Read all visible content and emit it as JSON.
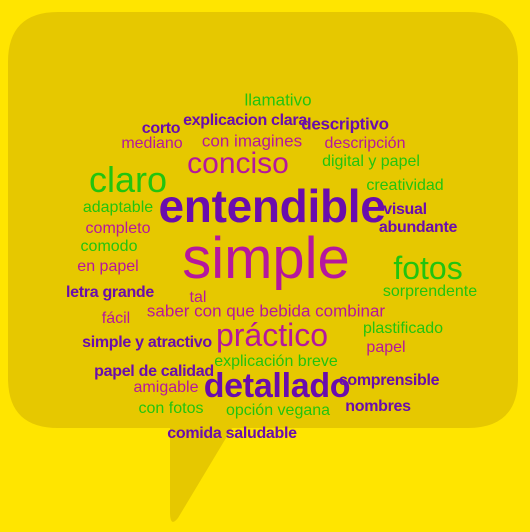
{
  "colors": {
    "background": "#FFE500",
    "bubble": "#E6C800",
    "purple": "#6A0DAD",
    "magenta": "#B5179E",
    "green": "#22C40E"
  },
  "cloud": {
    "words": [
      {
        "id": "llamativo",
        "text": "llamativo",
        "color": "green"
      },
      {
        "id": "explicacion-clara",
        "text": "explicacion clara",
        "color": "purple"
      },
      {
        "id": "corto",
        "text": "corto",
        "color": "purple"
      },
      {
        "id": "descriptivo",
        "text": "descriptivo",
        "color": "purple"
      },
      {
        "id": "mediano",
        "text": "mediano",
        "color": "magenta"
      },
      {
        "id": "con-imagines",
        "text": "con imagines",
        "color": "magenta"
      },
      {
        "id": "descripcion",
        "text": "descripción",
        "color": "magenta"
      },
      {
        "id": "conciso",
        "text": "conciso",
        "color": "magenta"
      },
      {
        "id": "digital-y-papel",
        "text": "digital y papel",
        "color": "green"
      },
      {
        "id": "claro",
        "text": "claro",
        "color": "green"
      },
      {
        "id": "creatividad",
        "text": "creatividad",
        "color": "green"
      },
      {
        "id": "entendible",
        "text": "entendible",
        "color": "purple"
      },
      {
        "id": "adaptable",
        "text": "adaptable",
        "color": "green"
      },
      {
        "id": "visual",
        "text": "visual",
        "color": "purple"
      },
      {
        "id": "completo",
        "text": "completo",
        "color": "magenta"
      },
      {
        "id": "abundante",
        "text": "abundante",
        "color": "purple"
      },
      {
        "id": "comodo",
        "text": "comodo",
        "color": "green"
      },
      {
        "id": "simple",
        "text": "simple",
        "color": "magenta"
      },
      {
        "id": "en-papel",
        "text": "en papel",
        "color": "magenta"
      },
      {
        "id": "fotos",
        "text": "fotos",
        "color": "green"
      },
      {
        "id": "letra-grande",
        "text": "letra grande",
        "color": "purple"
      },
      {
        "id": "sorprendente",
        "text": "sorprendente",
        "color": "green"
      },
      {
        "id": "tal",
        "text": "tal",
        "color": "magenta"
      },
      {
        "id": "saber-con-que-bebida-combinar",
        "text": "saber con que bebida combinar",
        "color": "magenta"
      },
      {
        "id": "facil",
        "text": "fácil",
        "color": "magenta"
      },
      {
        "id": "practico",
        "text": "práctico",
        "color": "magenta"
      },
      {
        "id": "plastificado",
        "text": "plastificado",
        "color": "green"
      },
      {
        "id": "simple-y-atractivo",
        "text": "simple y atractivo",
        "color": "purple"
      },
      {
        "id": "papel",
        "text": "papel",
        "color": "magenta"
      },
      {
        "id": "explicacion-breve",
        "text": "explicación breve",
        "color": "green"
      },
      {
        "id": "papel-de-calidad",
        "text": "papel de calidad",
        "color": "purple"
      },
      {
        "id": "detallado",
        "text": "detallado",
        "color": "purple"
      },
      {
        "id": "comprensible",
        "text": "comprensible",
        "color": "purple"
      },
      {
        "id": "amigable",
        "text": "amigable",
        "color": "magenta"
      },
      {
        "id": "con-fotos",
        "text": "con fotos",
        "color": "green"
      },
      {
        "id": "opcion-vegana",
        "text": "opción vegana",
        "color": "green"
      },
      {
        "id": "nombres",
        "text": "nombres",
        "color": "purple"
      },
      {
        "id": "comida-saludable",
        "text": "comida saludable",
        "color": "purple"
      }
    ]
  }
}
